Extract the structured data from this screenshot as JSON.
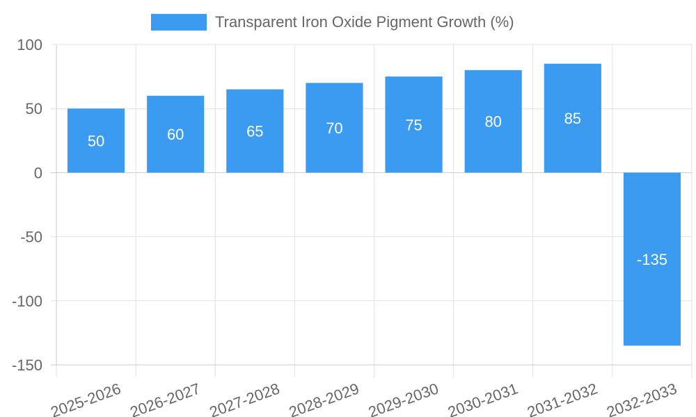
{
  "chart_data": {
    "type": "bar",
    "title": "",
    "xlabel": "",
    "ylabel": "",
    "categories": [
      "2025-2026",
      "2026-2027",
      "2027-2028",
      "2028-2029",
      "2029-2030",
      "2030-2031",
      "2031-2032",
      "2032-2033"
    ],
    "series": [
      {
        "name": "Transparent Iron Oxide Pigment Growth (%)",
        "values": [
          50,
          60,
          65,
          70,
          75,
          80,
          85,
          -135
        ],
        "color": "#3a9bf0"
      }
    ],
    "ylim": [
      -150,
      100
    ],
    "yticks": [
      100,
      50,
      0,
      -50,
      -100,
      -150
    ],
    "grid": true,
    "legend_position": "top-center",
    "data_labels": true
  }
}
